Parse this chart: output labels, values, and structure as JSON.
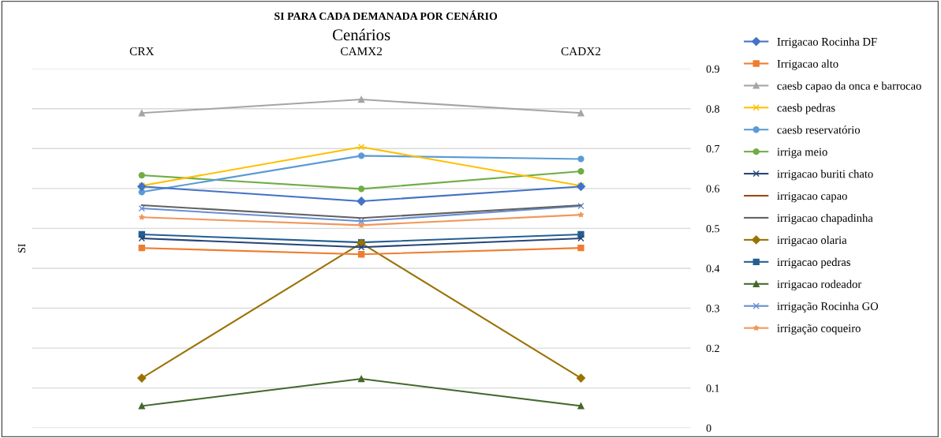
{
  "chart_data": {
    "type": "line",
    "title": "SI PARA CADA DEMANADA POR CENÁRIO",
    "xlabel": "Cenários",
    "ylabel": "SI",
    "categories": [
      "CRX",
      "CAMX2",
      "CADX2"
    ],
    "ylim": [
      0,
      0.9
    ],
    "yticks": [
      0,
      0.1,
      0.2,
      0.3,
      0.4,
      0.5,
      0.6,
      0.7,
      0.8,
      0.9
    ],
    "grid": "y",
    "legend": "right",
    "series": [
      {
        "name": "Irrigacao Rocinha DF",
        "color": "#4472c4",
        "marker": "diamond",
        "values": [
          0.605,
          0.568,
          0.605
        ]
      },
      {
        "name": "Irrigacao alto",
        "color": "#ed7d31",
        "marker": "square",
        "values": [
          0.451,
          0.435,
          0.451
        ]
      },
      {
        "name": "caesb capao da onca e barrocao",
        "color": "#a5a5a5",
        "marker": "triangle",
        "values": [
          0.789,
          0.823,
          0.789
        ]
      },
      {
        "name": "caesb pedras",
        "color": "#ffc000",
        "marker": "cross",
        "values": [
          0.607,
          0.704,
          0.607
        ]
      },
      {
        "name": "caesb reservatório",
        "color": "#5b9bd5",
        "marker": "circle",
        "values": [
          0.591,
          0.682,
          0.674
        ]
      },
      {
        "name": "irriga meio",
        "color": "#70ad47",
        "marker": "circle",
        "values": [
          0.633,
          0.599,
          0.643
        ]
      },
      {
        "name": "irrigacao buriti chato",
        "color": "#264478",
        "marker": "cross",
        "values": [
          0.475,
          0.453,
          0.475
        ]
      },
      {
        "name": "irrigacao capao",
        "color": "#9e480e",
        "marker": "none",
        "values": [
          null,
          null,
          null
        ]
      },
      {
        "name": "irrigacao chapadinha",
        "color": "#636363",
        "marker": "none",
        "values": [
          0.558,
          0.526,
          0.558
        ]
      },
      {
        "name": "irrigacao olaria",
        "color": "#997300",
        "marker": "diamond",
        "values": [
          0.125,
          0.463,
          0.125
        ]
      },
      {
        "name": "irrigacao pedras",
        "color": "#255e91",
        "marker": "square",
        "values": [
          0.485,
          0.465,
          0.485
        ]
      },
      {
        "name": "irrigacao rodeador",
        "color": "#43682b",
        "marker": "triangle",
        "values": [
          0.055,
          0.123,
          0.055
        ]
      },
      {
        "name": "irrigação Rocinha GO",
        "color": "#698ed0",
        "marker": "cross",
        "values": [
          0.55,
          0.518,
          0.556
        ]
      },
      {
        "name": "irrigação coqueiro",
        "color": "#f1975a",
        "marker": "star",
        "values": [
          0.528,
          0.508,
          0.534
        ]
      }
    ]
  }
}
